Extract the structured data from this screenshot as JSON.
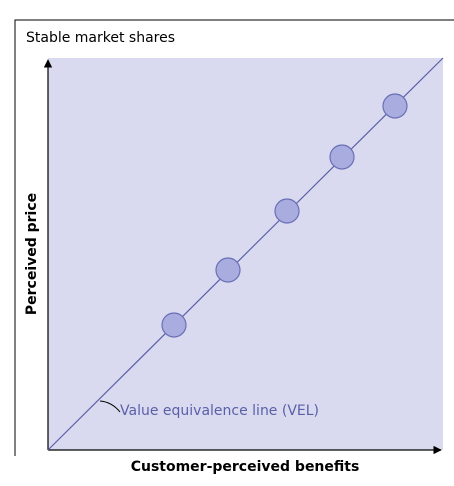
{
  "title": "Stable market shares",
  "x_axis_label": "Customer-perceived benefits",
  "y_axis_label": "Perceived price",
  "line_label": "Value equivalence line (VEL)"
}
